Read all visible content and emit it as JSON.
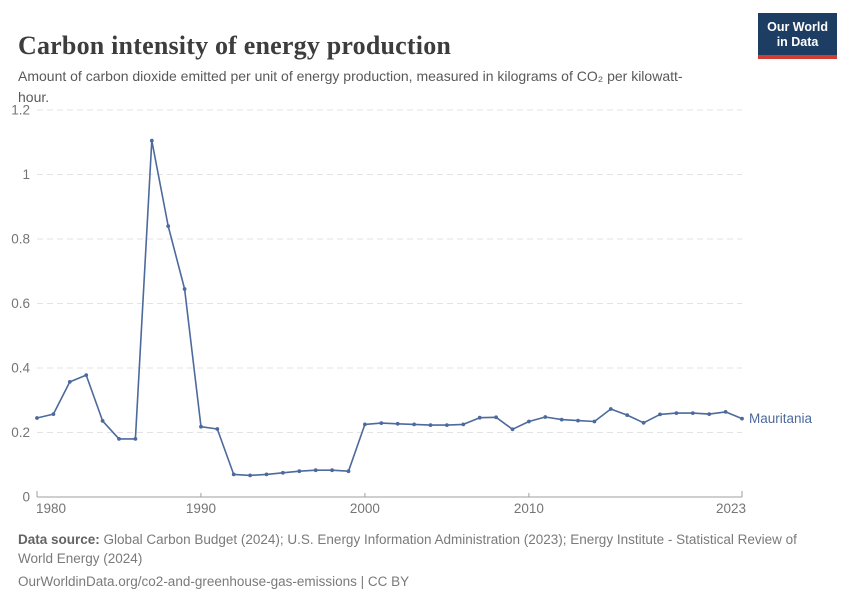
{
  "header": {
    "title": "Carbon intensity of energy production",
    "subtitle": "Amount of carbon dioxide emitted per unit of energy production, measured in kilograms of CO₂ per kilowatt-hour.",
    "logo": {
      "line1": "Our World",
      "line2": "in Data"
    }
  },
  "footer": {
    "datasource_label": "Data source:",
    "datasource_text": "Global Carbon Budget (2024); U.S. Energy Information Administration (2023); Energy Institute - Statistical Review of World Energy (2024)",
    "license_line": "OurWorldinData.org/co2-and-greenhouse-gas-emissions | CC BY"
  },
  "colors": {
    "line": "#4c6a9c",
    "grid": "#e3e3e3",
    "axis": "#9f9f9f",
    "tick_text": "#757575",
    "logo_bg": "#1d3d63",
    "logo_red": "#d23d33"
  },
  "chart_data": {
    "type": "line",
    "title": "Carbon intensity of energy production",
    "ylabel": "kilograms of CO₂ per kilowatt-hour",
    "series_label": "Mauritania",
    "x_ticks": [
      "1980",
      "1990",
      "2000",
      "2010",
      "2023"
    ],
    "x_tick_years": [
      1980,
      1990,
      2000,
      2010,
      2023
    ],
    "y_ticks": [
      0,
      0.2,
      0.4,
      0.6,
      0.8,
      1,
      1.2
    ],
    "y_tick_labels": [
      "0",
      "0.2",
      "0.4",
      "0.6",
      "0.8",
      "1",
      "1.2"
    ],
    "xlim": [
      1980,
      2023
    ],
    "ylim": [
      0,
      1.2
    ],
    "grid": "dashed-horizontal",
    "legend_position": "end-of-line",
    "x": [
      1980,
      1981,
      1982,
      1983,
      1984,
      1985,
      1986,
      1987,
      1988,
      1989,
      1990,
      1991,
      1992,
      1993,
      1994,
      1995,
      1996,
      1997,
      1998,
      1999,
      2000,
      2001,
      2002,
      2003,
      2004,
      2005,
      2006,
      2007,
      2008,
      2009,
      2010,
      2011,
      2012,
      2013,
      2014,
      2015,
      2016,
      2017,
      2018,
      2019,
      2020,
      2021,
      2022,
      2023
    ],
    "values": [
      0.245,
      0.257,
      0.357,
      0.378,
      0.236,
      0.18,
      0.18,
      1.105,
      0.84,
      0.645,
      0.218,
      0.211,
      0.07,
      0.067,
      0.07,
      0.075,
      0.08,
      0.083,
      0.083,
      0.08,
      0.225,
      0.229,
      0.227,
      0.225,
      0.223,
      0.223,
      0.225,
      0.246,
      0.247,
      0.21,
      0.234,
      0.248,
      0.24,
      0.237,
      0.234,
      0.273,
      0.254,
      0.23,
      0.256,
      0.26,
      0.26,
      0.257,
      0.264,
      0.243
    ]
  }
}
